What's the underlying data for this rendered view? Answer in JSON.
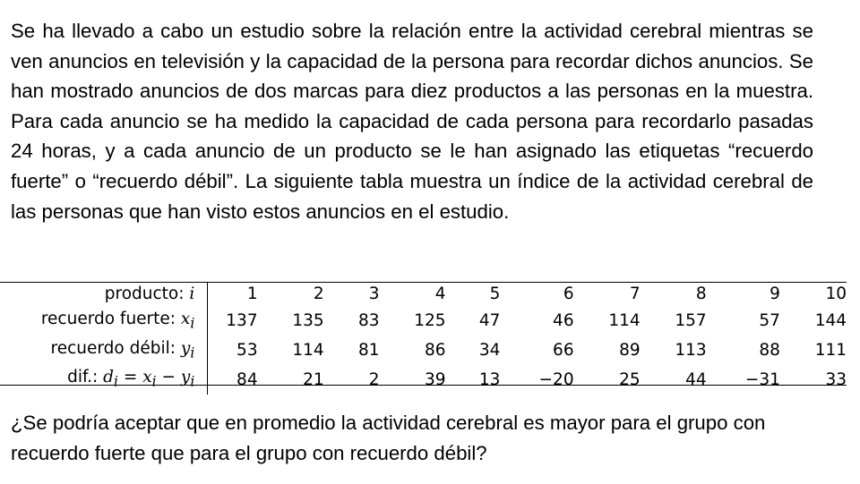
{
  "intro_text": "Se ha llevado a cabo un estudio sobre la relación entre la actividad cerebral mientras se ven anuncios en televisión y la capacidad de la persona para recordar dichos anuncios. Se han mostrado anuncios de dos marcas para diez productos a las personas en la muestra. Para cada anuncio se ha medido la capacidad de cada persona para recordarlo pasadas 24 horas, y a cada anuncio de un producto se le han asignado las etiquetas “recuerdo fuerte” o “recuerdo débil”. La siguiente tabla muestra un índice de la actividad cerebral de las personas que han visto estos anuncios en el estudio.",
  "table": {
    "rows": [
      {
        "label": "producto:",
        "var": "i",
        "values": [
          "1",
          "2",
          "3",
          "4",
          "5",
          "6",
          "7",
          "8",
          "9",
          "10"
        ]
      },
      {
        "label": "recuerdo fuerte:",
        "var": "x",
        "sub": "i",
        "values": [
          "137",
          "135",
          "83",
          "125",
          "47",
          "46",
          "114",
          "157",
          "57",
          "144"
        ]
      },
      {
        "label": "recuerdo débil:",
        "var": "y",
        "sub": "i",
        "values": [
          "53",
          "114",
          "81",
          "86",
          "34",
          "66",
          "89",
          "113",
          "88",
          "111"
        ]
      },
      {
        "label": "dif.:",
        "formula": "d",
        "formula_sub": "i",
        "formula_eq": "=",
        "formula_x": "x",
        "formula_x_sub": "i",
        "formula_minus": "−",
        "formula_y": "y",
        "formula_y_sub": "i",
        "values": [
          "84",
          "21",
          "2",
          "39",
          "13",
          "−20",
          "25",
          "44",
          "−31",
          "33"
        ]
      }
    ]
  },
  "question_text": "¿Se podría aceptar que en promedio la actividad cerebral es mayor para el grupo con recuerdo fuerte que para el grupo con recuerdo débil?"
}
